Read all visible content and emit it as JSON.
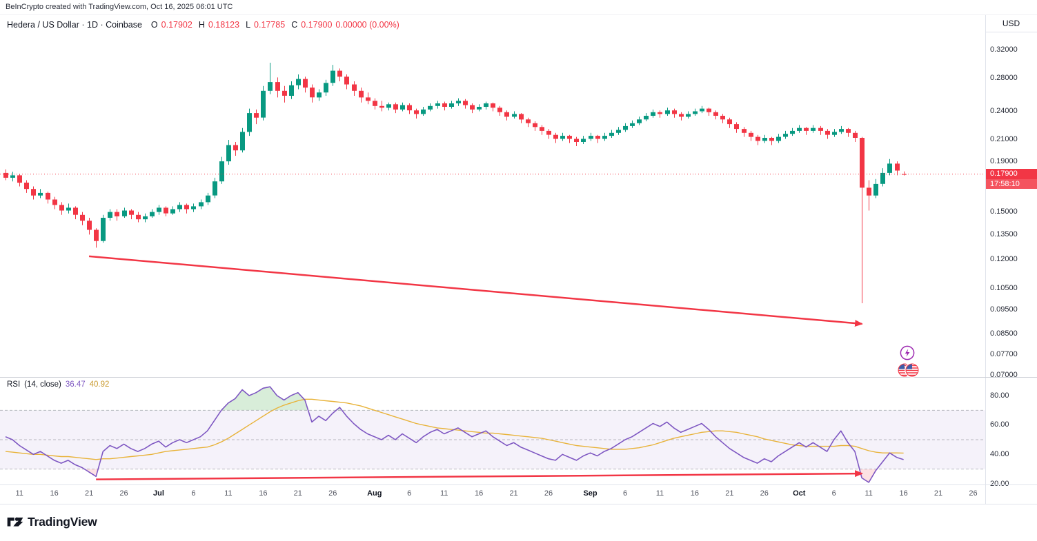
{
  "page": {
    "attribution": "BeInCrypto created with TradingView.com, Oct 16, 2025 06:01 UTC",
    "footer_brand": "TradingView"
  },
  "header": {
    "symbol_line": "Hedera / US Dollar · 1D · Coinbase",
    "ohlc": {
      "o_label": "O",
      "o": "0.17902",
      "h_label": "H",
      "h": "0.18123",
      "l_label": "L",
      "l": "0.17785",
      "c_label": "C",
      "c": "0.17900"
    },
    "change": "0.00000 (0.00%)"
  },
  "price_axis": {
    "currency": "USD",
    "current_price": "0.17900",
    "countdown": "17:58:10"
  },
  "rsi_header": {
    "title": "RSI",
    "params": "(14, close)",
    "value": "36.47",
    "ma_value": "40.92"
  },
  "colors": {
    "up": "#089981",
    "down": "#F23645",
    "rsi": "#7E57C2",
    "rsi_ma": "#E8B33A",
    "band_line": "#9598A1",
    "arrow": "#F23645",
    "badge": "#F23645",
    "overbought_fill": "#4CAF50",
    "oversold_fill": "#F23645"
  },
  "icons": {
    "lightning_badge": "lightning-icon",
    "flag_badge": "us-flag-icons",
    "brand_mark": "tradingview-mark"
  },
  "time_axis": [
    {
      "i": 2,
      "l": "11"
    },
    {
      "i": 7,
      "l": "16"
    },
    {
      "i": 12,
      "l": "21"
    },
    {
      "i": 17,
      "l": "26"
    },
    {
      "i": 22,
      "l": "Jul",
      "m": 1
    },
    {
      "i": 27,
      "l": "6"
    },
    {
      "i": 32,
      "l": "11"
    },
    {
      "i": 37,
      "l": "16"
    },
    {
      "i": 42,
      "l": "21"
    },
    {
      "i": 47,
      "l": "26"
    },
    {
      "i": 53,
      "l": "Aug",
      "m": 1
    },
    {
      "i": 58,
      "l": "6"
    },
    {
      "i": 63,
      "l": "11"
    },
    {
      "i": 68,
      "l": "16"
    },
    {
      "i": 73,
      "l": "21"
    },
    {
      "i": 78,
      "l": "26"
    },
    {
      "i": 84,
      "l": "Sep",
      "m": 1
    },
    {
      "i": 89,
      "l": "6"
    },
    {
      "i": 94,
      "l": "11"
    },
    {
      "i": 99,
      "l": "16"
    },
    {
      "i": 104,
      "l": "21"
    },
    {
      "i": 109,
      "l": "26"
    },
    {
      "i": 114,
      "l": "Oct",
      "m": 1
    },
    {
      "i": 119,
      "l": "6"
    },
    {
      "i": 124,
      "l": "11"
    },
    {
      "i": 129,
      "l": "16"
    },
    {
      "i": 134,
      "l": "21"
    },
    {
      "i": 139,
      "l": "26"
    }
  ],
  "chart_data": [
    {
      "type": "candlestick",
      "title": "Hedera / US Dollar · 1D · Coinbase",
      "symbol": "HBAR/USD",
      "interval": "1D",
      "exchange": "Coinbase",
      "ylabel": "USD",
      "y_scale": "log",
      "ylim": [
        0.067,
        0.345
      ],
      "y_ticks": [
        0.32,
        0.28,
        0.24,
        0.21,
        0.19,
        0.15,
        0.135,
        0.12,
        0.105,
        0.095,
        0.085,
        0.077,
        0.07
      ],
      "x_start_date": "2025-06-09",
      "last_price": 0.179,
      "ohlc_readout": {
        "open": 0.17902,
        "high": 0.18123,
        "low": 0.17785,
        "close": 0.179,
        "change": 0.0,
        "change_pct": 0.0
      },
      "candles": [
        [
          0.18,
          0.183,
          0.174,
          0.176
        ],
        [
          0.176,
          0.181,
          0.173,
          0.178
        ],
        [
          0.178,
          0.179,
          0.169,
          0.172
        ],
        [
          0.172,
          0.174,
          0.164,
          0.167
        ],
        [
          0.167,
          0.169,
          0.159,
          0.162
        ],
        [
          0.162,
          0.167,
          0.16,
          0.164
        ],
        [
          0.164,
          0.165,
          0.156,
          0.159
        ],
        [
          0.159,
          0.161,
          0.152,
          0.155
        ],
        [
          0.155,
          0.157,
          0.148,
          0.151
        ],
        [
          0.151,
          0.156,
          0.149,
          0.153
        ],
        [
          0.153,
          0.154,
          0.145,
          0.148
        ],
        [
          0.148,
          0.15,
          0.141,
          0.144
        ],
        [
          0.144,
          0.146,
          0.135,
          0.138
        ],
        [
          0.138,
          0.139,
          0.127,
          0.131
        ],
        [
          0.131,
          0.148,
          0.13,
          0.146
        ],
        [
          0.146,
          0.152,
          0.144,
          0.15
        ],
        [
          0.15,
          0.152,
          0.144,
          0.147
        ],
        [
          0.147,
          0.153,
          0.146,
          0.151
        ],
        [
          0.151,
          0.152,
          0.145,
          0.148
        ],
        [
          0.148,
          0.15,
          0.143,
          0.145
        ],
        [
          0.145,
          0.149,
          0.143,
          0.147
        ],
        [
          0.147,
          0.152,
          0.146,
          0.15
        ],
        [
          0.15,
          0.155,
          0.148,
          0.153
        ],
        [
          0.153,
          0.154,
          0.147,
          0.149
        ],
        [
          0.149,
          0.154,
          0.148,
          0.152
        ],
        [
          0.152,
          0.157,
          0.15,
          0.155
        ],
        [
          0.155,
          0.156,
          0.149,
          0.152
        ],
        [
          0.152,
          0.156,
          0.15,
          0.154
        ],
        [
          0.154,
          0.159,
          0.152,
          0.157
        ],
        [
          0.157,
          0.164,
          0.155,
          0.162
        ],
        [
          0.162,
          0.176,
          0.16,
          0.173
        ],
        [
          0.173,
          0.194,
          0.171,
          0.19
        ],
        [
          0.19,
          0.21,
          0.187,
          0.205
        ],
        [
          0.205,
          0.208,
          0.195,
          0.2
        ],
        [
          0.2,
          0.222,
          0.198,
          0.218
        ],
        [
          0.218,
          0.243,
          0.214,
          0.238
        ],
        [
          0.238,
          0.242,
          0.226,
          0.233
        ],
        [
          0.233,
          0.27,
          0.23,
          0.264
        ],
        [
          0.264,
          0.301,
          0.26,
          0.275
        ],
        [
          0.275,
          0.281,
          0.256,
          0.264
        ],
        [
          0.264,
          0.27,
          0.25,
          0.258
        ],
        [
          0.258,
          0.276,
          0.254,
          0.271
        ],
        [
          0.271,
          0.285,
          0.266,
          0.279
        ],
        [
          0.279,
          0.282,
          0.262,
          0.268
        ],
        [
          0.268,
          0.272,
          0.25,
          0.256
        ],
        [
          0.256,
          0.266,
          0.252,
          0.262
        ],
        [
          0.262,
          0.278,
          0.258,
          0.274
        ],
        [
          0.274,
          0.298,
          0.27,
          0.29
        ],
        [
          0.29,
          0.293,
          0.276,
          0.282
        ],
        [
          0.282,
          0.285,
          0.266,
          0.272
        ],
        [
          0.272,
          0.276,
          0.258,
          0.264
        ],
        [
          0.264,
          0.268,
          0.25,
          0.256
        ],
        [
          0.256,
          0.262,
          0.248,
          0.252
        ],
        [
          0.252,
          0.255,
          0.242,
          0.246
        ],
        [
          0.246,
          0.252,
          0.24,
          0.244
        ],
        [
          0.244,
          0.25,
          0.241,
          0.248
        ],
        [
          0.248,
          0.25,
          0.238,
          0.242
        ],
        [
          0.242,
          0.25,
          0.24,
          0.247
        ],
        [
          0.247,
          0.249,
          0.237,
          0.241
        ],
        [
          0.241,
          0.243,
          0.232,
          0.237
        ],
        [
          0.237,
          0.245,
          0.235,
          0.242
        ],
        [
          0.242,
          0.249,
          0.24,
          0.246
        ],
        [
          0.246,
          0.252,
          0.243,
          0.249
        ],
        [
          0.249,
          0.251,
          0.241,
          0.245
        ],
        [
          0.245,
          0.252,
          0.243,
          0.249
        ],
        [
          0.249,
          0.255,
          0.246,
          0.252
        ],
        [
          0.252,
          0.254,
          0.243,
          0.247
        ],
        [
          0.247,
          0.249,
          0.238,
          0.242
        ],
        [
          0.242,
          0.248,
          0.24,
          0.245
        ],
        [
          0.245,
          0.251,
          0.242,
          0.249
        ],
        [
          0.249,
          0.25,
          0.24,
          0.244
        ],
        [
          0.244,
          0.246,
          0.235,
          0.239
        ],
        [
          0.239,
          0.241,
          0.23,
          0.234
        ],
        [
          0.234,
          0.24,
          0.232,
          0.237
        ],
        [
          0.237,
          0.238,
          0.227,
          0.231
        ],
        [
          0.231,
          0.233,
          0.223,
          0.227
        ],
        [
          0.227,
          0.229,
          0.219,
          0.223
        ],
        [
          0.223,
          0.225,
          0.215,
          0.219
        ],
        [
          0.219,
          0.221,
          0.211,
          0.215
        ],
        [
          0.215,
          0.217,
          0.207,
          0.211
        ],
        [
          0.211,
          0.217,
          0.209,
          0.214
        ],
        [
          0.214,
          0.215,
          0.207,
          0.211
        ],
        [
          0.211,
          0.213,
          0.204,
          0.208
        ],
        [
          0.208,
          0.214,
          0.206,
          0.211
        ],
        [
          0.211,
          0.217,
          0.209,
          0.214
        ],
        [
          0.214,
          0.215,
          0.207,
          0.211
        ],
        [
          0.211,
          0.217,
          0.209,
          0.214
        ],
        [
          0.214,
          0.22,
          0.212,
          0.217
        ],
        [
          0.217,
          0.223,
          0.215,
          0.22
        ],
        [
          0.22,
          0.227,
          0.218,
          0.224
        ],
        [
          0.224,
          0.23,
          0.222,
          0.227
        ],
        [
          0.227,
          0.234,
          0.225,
          0.231
        ],
        [
          0.231,
          0.238,
          0.229,
          0.235
        ],
        [
          0.235,
          0.242,
          0.233,
          0.239
        ],
        [
          0.239,
          0.241,
          0.233,
          0.237
        ],
        [
          0.237,
          0.244,
          0.235,
          0.241
        ],
        [
          0.241,
          0.243,
          0.233,
          0.237
        ],
        [
          0.237,
          0.239,
          0.23,
          0.234
        ],
        [
          0.234,
          0.24,
          0.232,
          0.237
        ],
        [
          0.237,
          0.243,
          0.235,
          0.24
        ],
        [
          0.24,
          0.246,
          0.238,
          0.243
        ],
        [
          0.243,
          0.244,
          0.235,
          0.239
        ],
        [
          0.239,
          0.241,
          0.231,
          0.235
        ],
        [
          0.235,
          0.237,
          0.227,
          0.231
        ],
        [
          0.231,
          0.233,
          0.222,
          0.226
        ],
        [
          0.226,
          0.228,
          0.217,
          0.221
        ],
        [
          0.221,
          0.223,
          0.213,
          0.217
        ],
        [
          0.217,
          0.219,
          0.209,
          0.213
        ],
        [
          0.213,
          0.215,
          0.205,
          0.209
        ],
        [
          0.209,
          0.215,
          0.207,
          0.212
        ],
        [
          0.212,
          0.213,
          0.205,
          0.209
        ],
        [
          0.209,
          0.216,
          0.207,
          0.213
        ],
        [
          0.213,
          0.219,
          0.211,
          0.216
        ],
        [
          0.216,
          0.222,
          0.214,
          0.219
        ],
        [
          0.219,
          0.225,
          0.217,
          0.222
        ],
        [
          0.222,
          0.223,
          0.215,
          0.219
        ],
        [
          0.219,
          0.225,
          0.217,
          0.222
        ],
        [
          0.222,
          0.224,
          0.215,
          0.219
        ],
        [
          0.219,
          0.221,
          0.211,
          0.215
        ],
        [
          0.215,
          0.221,
          0.213,
          0.218
        ],
        [
          0.218,
          0.224,
          0.216,
          0.221
        ],
        [
          0.221,
          0.222,
          0.213,
          0.217
        ],
        [
          0.217,
          0.219,
          0.208,
          0.212
        ],
        [
          0.212,
          0.213,
          0.098,
          0.168
        ],
        [
          0.168,
          0.174,
          0.151,
          0.162
        ],
        [
          0.162,
          0.175,
          0.16,
          0.171
        ],
        [
          0.171,
          0.184,
          0.169,
          0.18
        ],
        [
          0.18,
          0.192,
          0.178,
          0.188
        ],
        [
          0.188,
          0.19,
          0.178,
          0.182
        ],
        [
          0.17902,
          0.18123,
          0.17785,
          0.179
        ]
      ],
      "annotations": [
        {
          "type": "trend-arrow",
          "from": {
            "index": 12,
            "price": 0.122
          },
          "to": {
            "index": 123,
            "price": 0.089
          }
        },
        {
          "type": "current-price-line",
          "price": 0.179
        }
      ]
    },
    {
      "type": "line",
      "title": "RSI (14, close)",
      "ylim": [
        15,
        90
      ],
      "y_ticks": [
        80,
        60,
        40,
        20
      ],
      "band_levels": [
        70,
        50,
        30
      ],
      "series": [
        {
          "name": "RSI",
          "color": "#7E57C2",
          "values": [
            52,
            50,
            46,
            43,
            40,
            42,
            39,
            36,
            34,
            36,
            33,
            31,
            28,
            25,
            42,
            46,
            44,
            47,
            44,
            42,
            44,
            47,
            49,
            45,
            48,
            50,
            48,
            50,
            52,
            56,
            63,
            70,
            75,
            78,
            84,
            80,
            82,
            85,
            86,
            80,
            77,
            80,
            82,
            77,
            62,
            66,
            63,
            68,
            72,
            66,
            61,
            57,
            54,
            52,
            50,
            53,
            50,
            54,
            51,
            48,
            52,
            55,
            57,
            54,
            56,
            58,
            55,
            52,
            54,
            56,
            52,
            49,
            46,
            48,
            45,
            43,
            41,
            39,
            37,
            36,
            40,
            38,
            36,
            39,
            41,
            39,
            42,
            44,
            47,
            50,
            52,
            55,
            58,
            61,
            59,
            62,
            58,
            55,
            57,
            59,
            61,
            57,
            52,
            48,
            44,
            41,
            38,
            36,
            34,
            37,
            35,
            39,
            42,
            45,
            48,
            45,
            48,
            45,
            42,
            50,
            56,
            48,
            42,
            24,
            21,
            29,
            35,
            41,
            38,
            36.47
          ]
        },
        {
          "name": "RSI-based MA",
          "color": "#E8B33A",
          "values": [
            42,
            41.5,
            41,
            40.5,
            40,
            40,
            39.5,
            39,
            38.5,
            38.5,
            38,
            37.5,
            37,
            36.5,
            37,
            37,
            37.5,
            38,
            38.5,
            39,
            39.5,
            40,
            41,
            42,
            42.5,
            43,
            43.5,
            44,
            44.5,
            45,
            46.5,
            48.5,
            51,
            54,
            57,
            60,
            63,
            66,
            69,
            71.5,
            73.5,
            75,
            76.5,
            77.5,
            77.5,
            77,
            76.5,
            76,
            75.5,
            75,
            74,
            73,
            71.5,
            70,
            68.5,
            67,
            65.5,
            64,
            62.5,
            61,
            60,
            59,
            58,
            57.5,
            57,
            56.5,
            56,
            55.5,
            55,
            54.5,
            54.5,
            54,
            53.5,
            53,
            52.5,
            52,
            51.5,
            51,
            50,
            49,
            48,
            47,
            46,
            45.5,
            45,
            44.5,
            44,
            43.5,
            43.5,
            43.5,
            44,
            44.5,
            45.5,
            46.5,
            48,
            49.5,
            51,
            52,
            53,
            54,
            55,
            55.5,
            56,
            56,
            55.5,
            55,
            54,
            53,
            52,
            50.5,
            49.5,
            48.5,
            47.5,
            46.5,
            46,
            45.5,
            45.5,
            45.5,
            45.5,
            45.5,
            46,
            46,
            45.5,
            44,
            42.5,
            41.5,
            41,
            41,
            41,
            40.92
          ]
        }
      ],
      "current_values": {
        "rsi": 36.47,
        "ma": 40.92
      },
      "annotations": [
        {
          "type": "trend-arrow",
          "from": {
            "index": 13,
            "value": 23
          },
          "to": {
            "index": 123,
            "value": 27
          }
        }
      ]
    }
  ]
}
